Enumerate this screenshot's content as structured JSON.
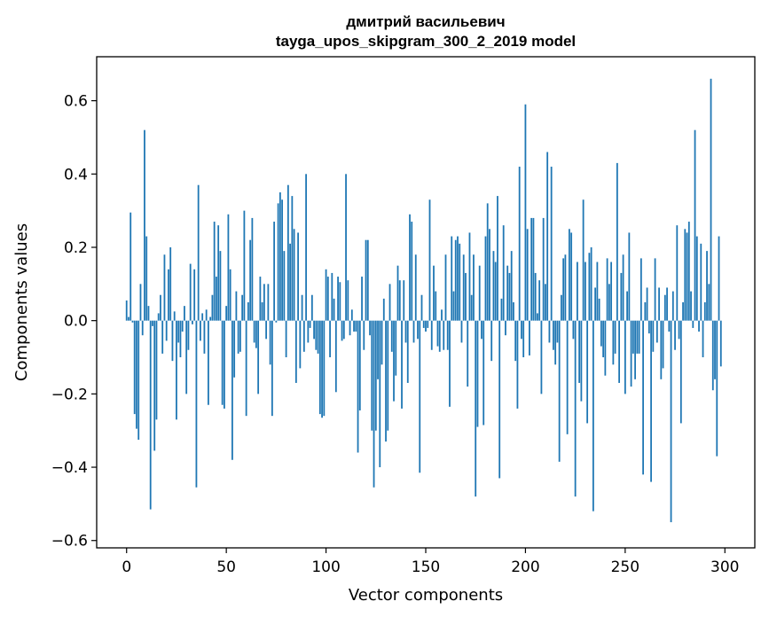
{
  "chart_data": {
    "type": "bar",
    "title_line1": "дмитрий васильевич",
    "title_line2": "tayga_upos_skipgram_300_2_2019 model",
    "xlabel": "Vector components",
    "ylabel": "Components values",
    "xlim": [
      -15,
      315
    ],
    "ylim": [
      -0.62,
      0.72
    ],
    "xticks": [
      0,
      50,
      100,
      150,
      200,
      250,
      300
    ],
    "xtick_labels": [
      "0",
      "50",
      "100",
      "150",
      "200",
      "250",
      "300"
    ],
    "yticks": [
      -0.6,
      -0.4,
      -0.2,
      0.0,
      0.2,
      0.4,
      0.6
    ],
    "ytick_labels": [
      "−0.6",
      "−0.4",
      "−0.2",
      "0.0",
      "0.2",
      "0.4",
      "0.6"
    ],
    "bar_color": "#1f77b4",
    "values": [
      0.055,
      0.01,
      0.295,
      -0.005,
      -0.255,
      -0.295,
      -0.325,
      0.1,
      -0.04,
      0.52,
      0.23,
      0.04,
      -0.515,
      -0.015,
      -0.355,
      -0.27,
      0.02,
      0.07,
      -0.09,
      0.18,
      -0.055,
      0.14,
      0.2,
      -0.11,
      0.025,
      -0.27,
      -0.06,
      -0.1,
      -0.03,
      0.04,
      -0.2,
      -0.08,
      0.155,
      -0.01,
      0.14,
      -0.455,
      0.37,
      -0.055,
      0.02,
      -0.09,
      0.03,
      -0.23,
      0.01,
      0.07,
      0.27,
      0.12,
      0.26,
      0.19,
      -0.23,
      -0.24,
      0.04,
      0.29,
      0.14,
      -0.38,
      -0.155,
      0.08,
      -0.09,
      -0.085,
      0.07,
      0.3,
      -0.26,
      0.05,
      0.22,
      0.28,
      -0.06,
      -0.075,
      -0.2,
      0.12,
      0.05,
      0.1,
      -0.05,
      0.1,
      -0.12,
      -0.26,
      0.27,
      -0.005,
      0.32,
      0.35,
      0.33,
      0.19,
      -0.1,
      0.37,
      0.21,
      0.34,
      0.25,
      -0.17,
      0.24,
      -0.13,
      0.07,
      -0.085,
      0.4,
      -0.06,
      -0.02,
      0.07,
      -0.05,
      -0.08,
      -0.09,
      -0.255,
      -0.265,
      -0.26,
      0.14,
      0.12,
      -0.1,
      0.13,
      0.06,
      -0.195,
      0.12,
      0.105,
      -0.055,
      -0.05,
      0.4,
      0.11,
      -0.04,
      0.03,
      -0.03,
      -0.03,
      -0.36,
      -0.245,
      0.12,
      -0.08,
      0.22,
      0.22,
      -0.04,
      -0.3,
      -0.455,
      -0.3,
      -0.16,
      -0.4,
      -0.12,
      0.06,
      -0.33,
      -0.3,
      0.1,
      -0.085,
      -0.22,
      -0.15,
      0.15,
      0.11,
      -0.24,
      0.11,
      -0.06,
      -0.17,
      0.29,
      0.27,
      -0.06,
      0.18,
      -0.05,
      -0.415,
      0.07,
      -0.02,
      -0.03,
      -0.02,
      0.33,
      -0.08,
      0.15,
      0.08,
      -0.07,
      -0.085,
      0.03,
      -0.08,
      0.18,
      -0.08,
      -0.235,
      0.23,
      0.08,
      0.22,
      0.23,
      0.21,
      -0.06,
      0.18,
      0.13,
      -0.18,
      0.24,
      0.07,
      0.18,
      -0.48,
      -0.29,
      0.15,
      -0.05,
      -0.285,
      0.23,
      0.32,
      0.25,
      -0.11,
      0.19,
      0.16,
      0.34,
      -0.43,
      0.06,
      0.26,
      -0.04,
      0.15,
      0.13,
      0.19,
      0.05,
      -0.11,
      -0.24,
      0.42,
      -0.05,
      -0.1,
      0.59,
      0.25,
      -0.095,
      0.28,
      0.28,
      0.13,
      0.02,
      0.11,
      -0.2,
      0.28,
      0.1,
      0.46,
      -0.06,
      0.42,
      -0.08,
      -0.12,
      -0.06,
      -0.385,
      0.07,
      0.17,
      0.18,
      -0.31,
      0.25,
      0.24,
      -0.05,
      -0.48,
      0.16,
      -0.17,
      -0.22,
      0.33,
      0.16,
      -0.28,
      0.185,
      0.2,
      -0.52,
      0.09,
      0.16,
      0.06,
      -0.07,
      -0.1,
      -0.15,
      0.17,
      0.1,
      0.16,
      -0.12,
      -0.09,
      0.43,
      -0.17,
      0.13,
      0.18,
      -0.2,
      0.08,
      0.24,
      -0.18,
      -0.09,
      -0.16,
      -0.09,
      -0.09,
      0.17,
      -0.42,
      0.05,
      0.09,
      -0.035,
      -0.44,
      -0.085,
      0.17,
      -0.06,
      0.09,
      -0.16,
      -0.13,
      0.07,
      0.09,
      -0.03,
      -0.55,
      0.08,
      -0.08,
      0.26,
      -0.05,
      -0.28,
      0.05,
      0.25,
      0.24,
      0.27,
      0.08,
      -0.02,
      0.52,
      0.23,
      -0.03,
      0.21,
      -0.1,
      0.05,
      0.19,
      0.1,
      0.66,
      -0.19,
      -0.16,
      -0.37,
      0.23,
      -0.125
    ]
  }
}
